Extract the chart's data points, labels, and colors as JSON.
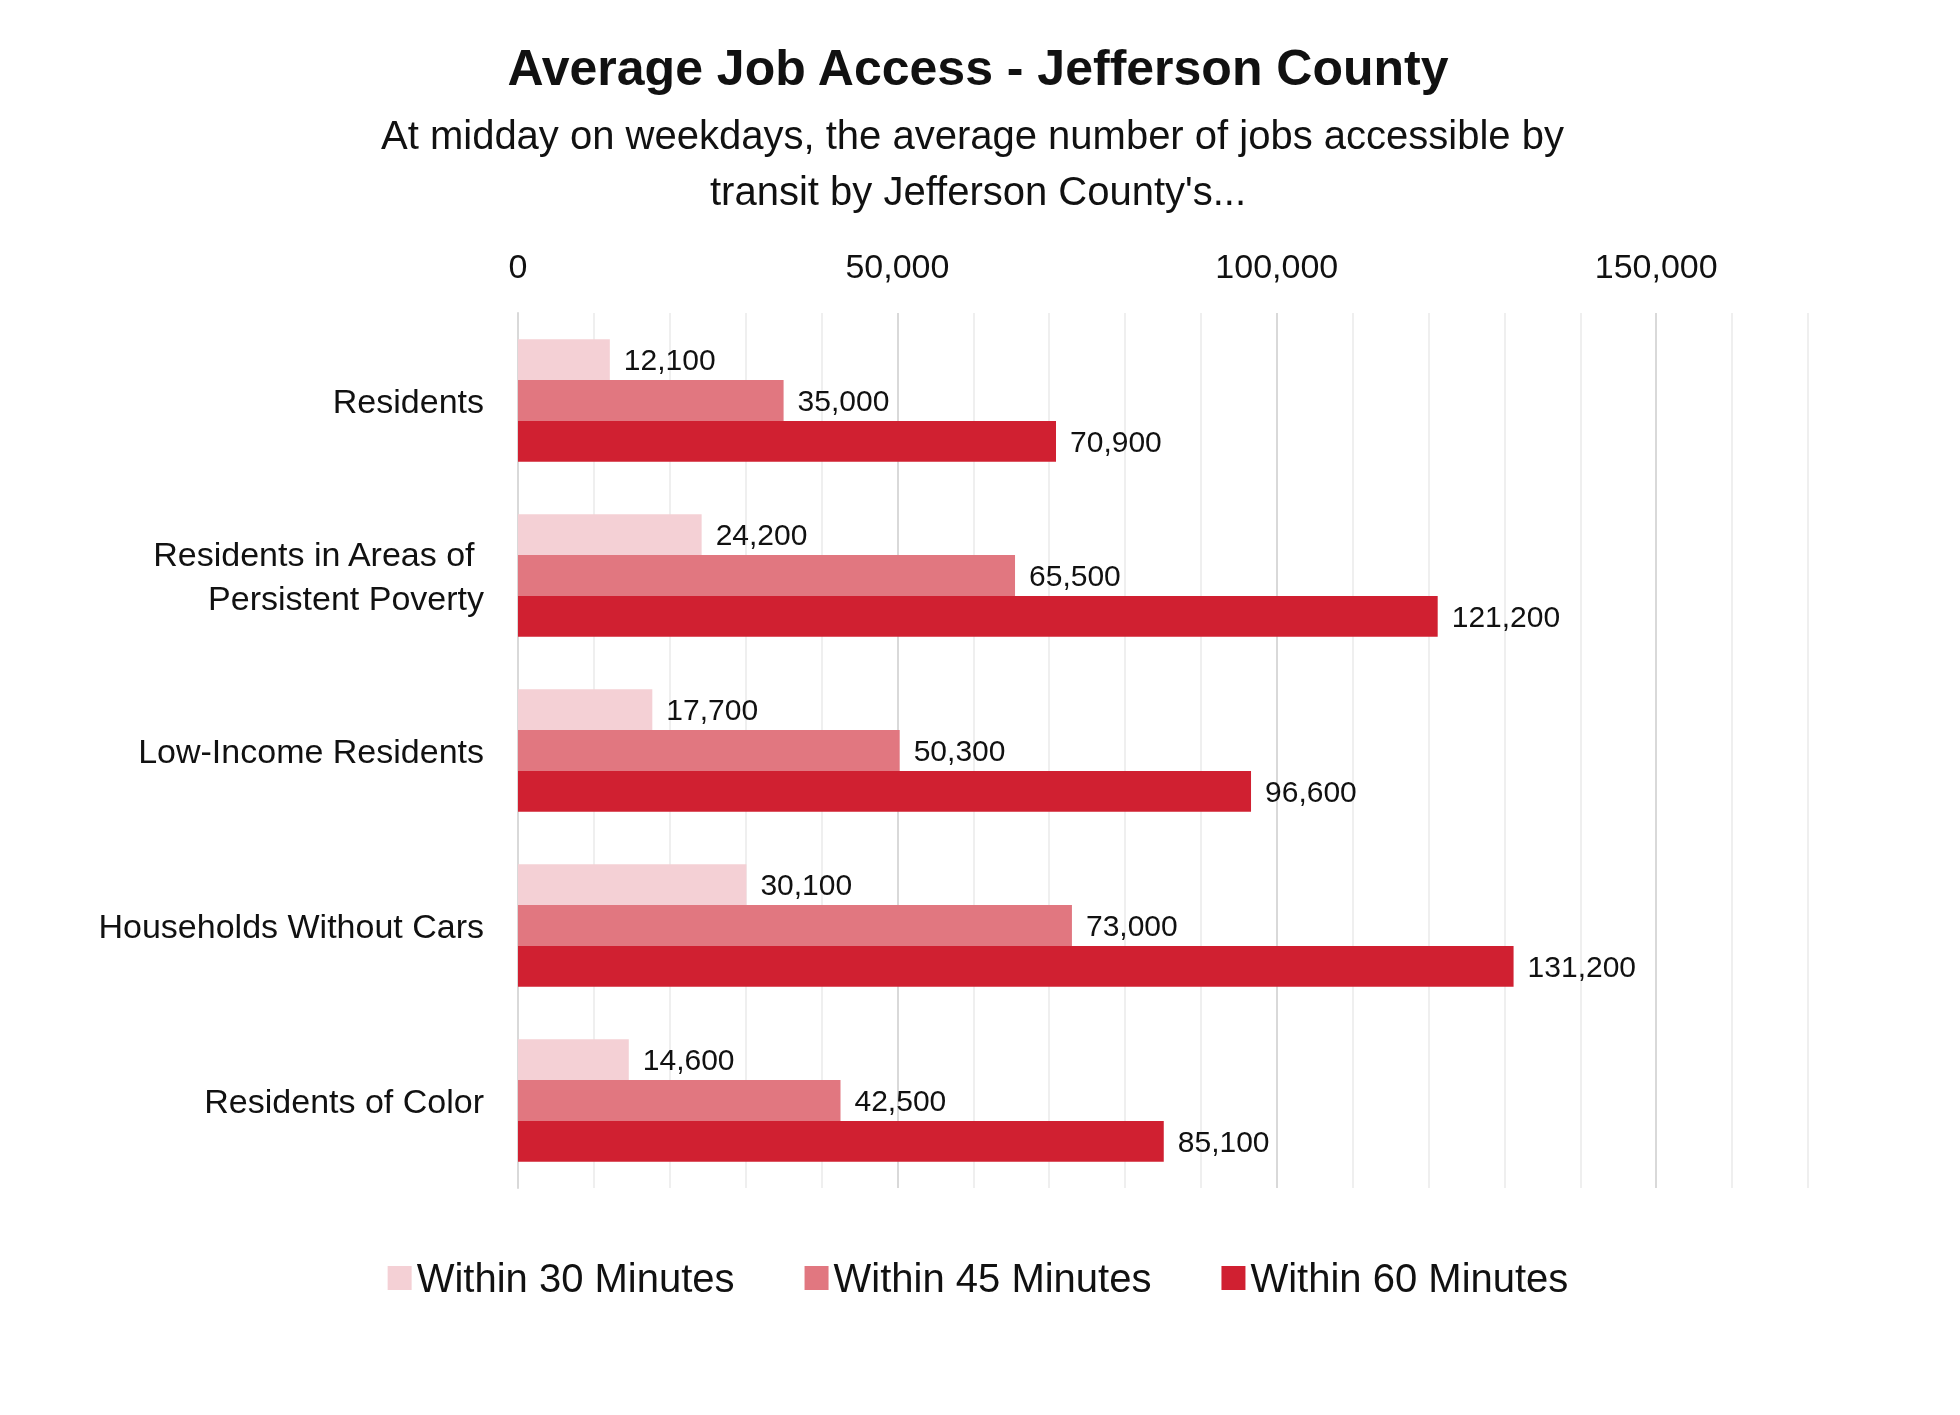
{
  "chart_data": {
    "type": "bar",
    "orientation": "horizontal",
    "title": "Average Job Access - Jefferson County",
    "subtitle": "At midday on weekdays, the average number of jobs accessible by transit by Jefferson County's...",
    "categories": [
      "Residents",
      "Residents in Areas of Persistent Poverty",
      "Low-Income Residents",
      "Households Without Cars",
      "Residents of Color"
    ],
    "series": [
      {
        "name": "Within 30 Minutes",
        "color": "#f4d0d5",
        "values": [
          12100,
          24200,
          17700,
          30100,
          14600
        ],
        "value_labels": [
          "12,100",
          "24,200",
          "17,700",
          "30,100",
          "14,600"
        ]
      },
      {
        "name": "Within 45 Minutes",
        "color": "#e17780",
        "values": [
          35000,
          65500,
          50300,
          73000,
          42500
        ],
        "value_labels": [
          "35,000",
          "65,500",
          "50,300",
          "73,000",
          "42,500"
        ]
      },
      {
        "name": "Within 60 Minutes",
        "color": "#d02031",
        "values": [
          70900,
          121200,
          96600,
          131200,
          85100
        ],
        "value_labels": [
          "70,900",
          "121,200",
          "96,600",
          "131,200",
          "85,100"
        ]
      }
    ],
    "xlim": [
      0,
      170000
    ],
    "xticks": [
      0,
      {
        "value": 10000,
        "label": null
      },
      {
        "value": 20000,
        "label": null
      },
      {
        "value": 30000,
        "label": null
      },
      {
        "value": 40000,
        "label": null
      },
      {
        "value": 50000,
        "label": "50,000"
      },
      {
        "value": 60000,
        "label": null
      },
      {
        "value": 70000,
        "label": null
      },
      {
        "value": 80000,
        "label": null
      },
      {
        "value": 90000,
        "label": null
      },
      {
        "value": 100000,
        "label": "100,000"
      },
      {
        "value": 110000,
        "label": null
      },
      {
        "value": 120000,
        "label": null
      },
      {
        "value": 130000,
        "label": null
      },
      {
        "value": 140000,
        "label": null
      },
      {
        "value": 150000,
        "label": "150,000"
      },
      {
        "value": 160000,
        "label": null
      },
      {
        "value": 170000,
        "label": null
      }
    ],
    "grid": "x",
    "legend": "bottom"
  }
}
